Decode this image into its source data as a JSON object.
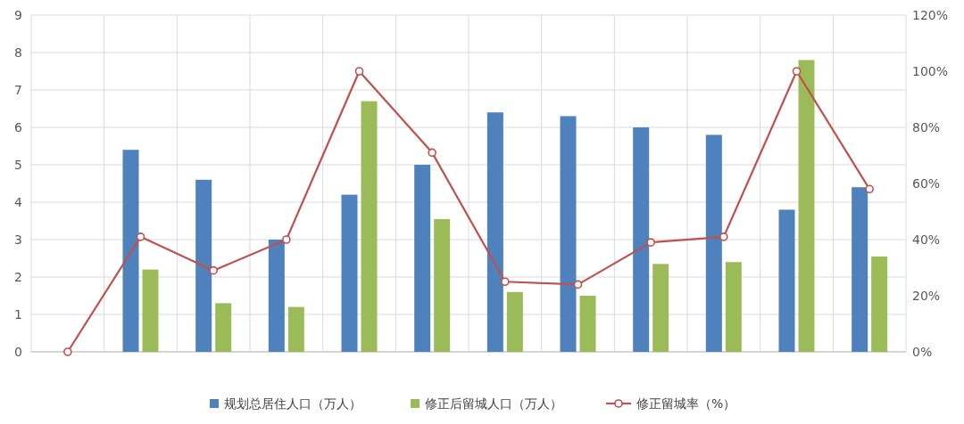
{
  "chart_data": {
    "type": "bar",
    "categories": [
      null,
      null,
      null,
      null,
      null,
      null,
      null,
      null,
      null,
      null,
      null,
      null
    ],
    "series": [
      {
        "name": "规划总居住人口（万人）",
        "color": "#4f81bd",
        "values": [
          0,
          5.4,
          4.6,
          3.0,
          4.2,
          5.0,
          6.4,
          6.3,
          6.0,
          5.8,
          3.8,
          4.4
        ]
      },
      {
        "name": "修正后留城人口（万人）",
        "color": "#9bbb59",
        "values": [
          0,
          2.2,
          1.3,
          1.2,
          6.7,
          3.55,
          1.6,
          1.5,
          2.35,
          2.4,
          7.8,
          2.55
        ]
      },
      {
        "name": "修正留城率（%）",
        "color": "#c0504d",
        "type": "line",
        "axis": "y2",
        "marker": "circle",
        "values": [
          0,
          41,
          29,
          40,
          100,
          71,
          25,
          24,
          39,
          41,
          100,
          58
        ]
      }
    ],
    "ylim": [
      0,
      9
    ],
    "yticks": [
      0,
      1,
      2,
      3,
      4,
      5,
      6,
      7,
      8,
      9
    ],
    "y2lim": [
      0,
      120
    ],
    "y2ticks": [
      {
        "value": 0,
        "label": "0%"
      },
      {
        "value": 20,
        "label": "20%"
      },
      {
        "value": 40,
        "label": "40%"
      },
      {
        "value": 60,
        "label": "60%"
      },
      {
        "value": 80,
        "label": "80%"
      },
      {
        "value": 100,
        "label": "100%"
      },
      {
        "value": 120,
        "label": "120%"
      }
    ],
    "grid": true,
    "legend": "bottom"
  }
}
